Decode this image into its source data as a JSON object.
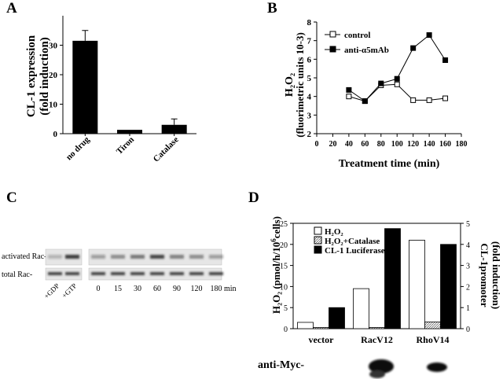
{
  "panels": {
    "A": {
      "letter": "A",
      "chart_data": {
        "type": "bar",
        "categories": [
          "no drug",
          "Tiron",
          "Catalase"
        ],
        "values": [
          31.5,
          1.3,
          3.0
        ],
        "errors": [
          3.5,
          0,
          2.0
        ],
        "ylabel_line1": "CL-1 expression",
        "ylabel_line2": "(fold induction)",
        "ylim": [
          0,
          40
        ],
        "yticks": [
          "0",
          "10",
          "20",
          "30"
        ],
        "bar_color": "#000000"
      }
    },
    "B": {
      "letter": "B",
      "chart_data": {
        "type": "line",
        "ylabel_line1": "H₂O₂",
        "ylabel_line2": "(fluorimetric units 10-3)",
        "xlabel": "Treatment time (min)",
        "xlim": [
          0,
          180
        ],
        "ylim": [
          2,
          8
        ],
        "xticks": [
          "0",
          "20",
          "40",
          "60",
          "80",
          "100",
          "120",
          "140",
          "160",
          "180"
        ],
        "yticks": [
          "2",
          "3",
          "4",
          "5",
          "6",
          "7",
          "8"
        ],
        "legend_position": "top-left",
        "series": [
          {
            "name": "control",
            "marker": "open-square",
            "x": [
              40,
              60,
              80,
              100,
              120,
              140,
              160
            ],
            "y": [
              4.0,
              3.75,
              4.6,
              4.65,
              3.8,
              3.8,
              3.9
            ]
          },
          {
            "name": "anti-α5mAb",
            "marker": "filled-square",
            "x": [
              40,
              60,
              80,
              100,
              120,
              140,
              160
            ],
            "y": [
              4.35,
              3.75,
              4.7,
              4.95,
              6.6,
              7.3,
              5.95
            ]
          }
        ]
      }
    },
    "C": {
      "letter": "C",
      "row_labels": [
        "activated Rac-",
        "total Rac-"
      ],
      "control_lanes": [
        "+GDP",
        "+GTP"
      ],
      "time_lanes": [
        "0",
        "15",
        "30",
        "60",
        "90",
        "120",
        "180"
      ],
      "time_unit": "min"
    },
    "D": {
      "letter": "D",
      "chart_data": {
        "type": "bar",
        "categories": [
          "vector",
          "RacV12",
          "RhoV14"
        ],
        "ylabel_left_prefix": "H₂O₂ (pmol/h/10",
        "ylabel_left_sup": "6",
        "ylabel_left_suffix": "cells)",
        "ylabel_right_line1": "CL-1promoter",
        "ylabel_right_line2": "(fold induction)",
        "ylim_left": [
          0,
          25
        ],
        "ylim_right": [
          0,
          5
        ],
        "yticks_left": [
          "0",
          "5",
          "10",
          "15",
          "20",
          "25"
        ],
        "yticks_right": [
          "0",
          "1",
          "2",
          "3",
          "4",
          "5"
        ],
        "legend_position": "top-left",
        "series": [
          {
            "name": "H₂O₂",
            "axis": "left",
            "fill": "white",
            "values": [
              1.5,
              9.5,
              21.0
            ]
          },
          {
            "name": "H₂O₂+Catalase",
            "axis": "left",
            "fill": "hatched",
            "values": [
              0.3,
              0.3,
              1.6
            ]
          },
          {
            "name": "CL-1 Luciferase",
            "axis": "right",
            "fill": "black",
            "values": [
              1.0,
              4.75,
              4.0
            ]
          }
        ]
      },
      "blot_label": "anti-Myc-"
    }
  }
}
